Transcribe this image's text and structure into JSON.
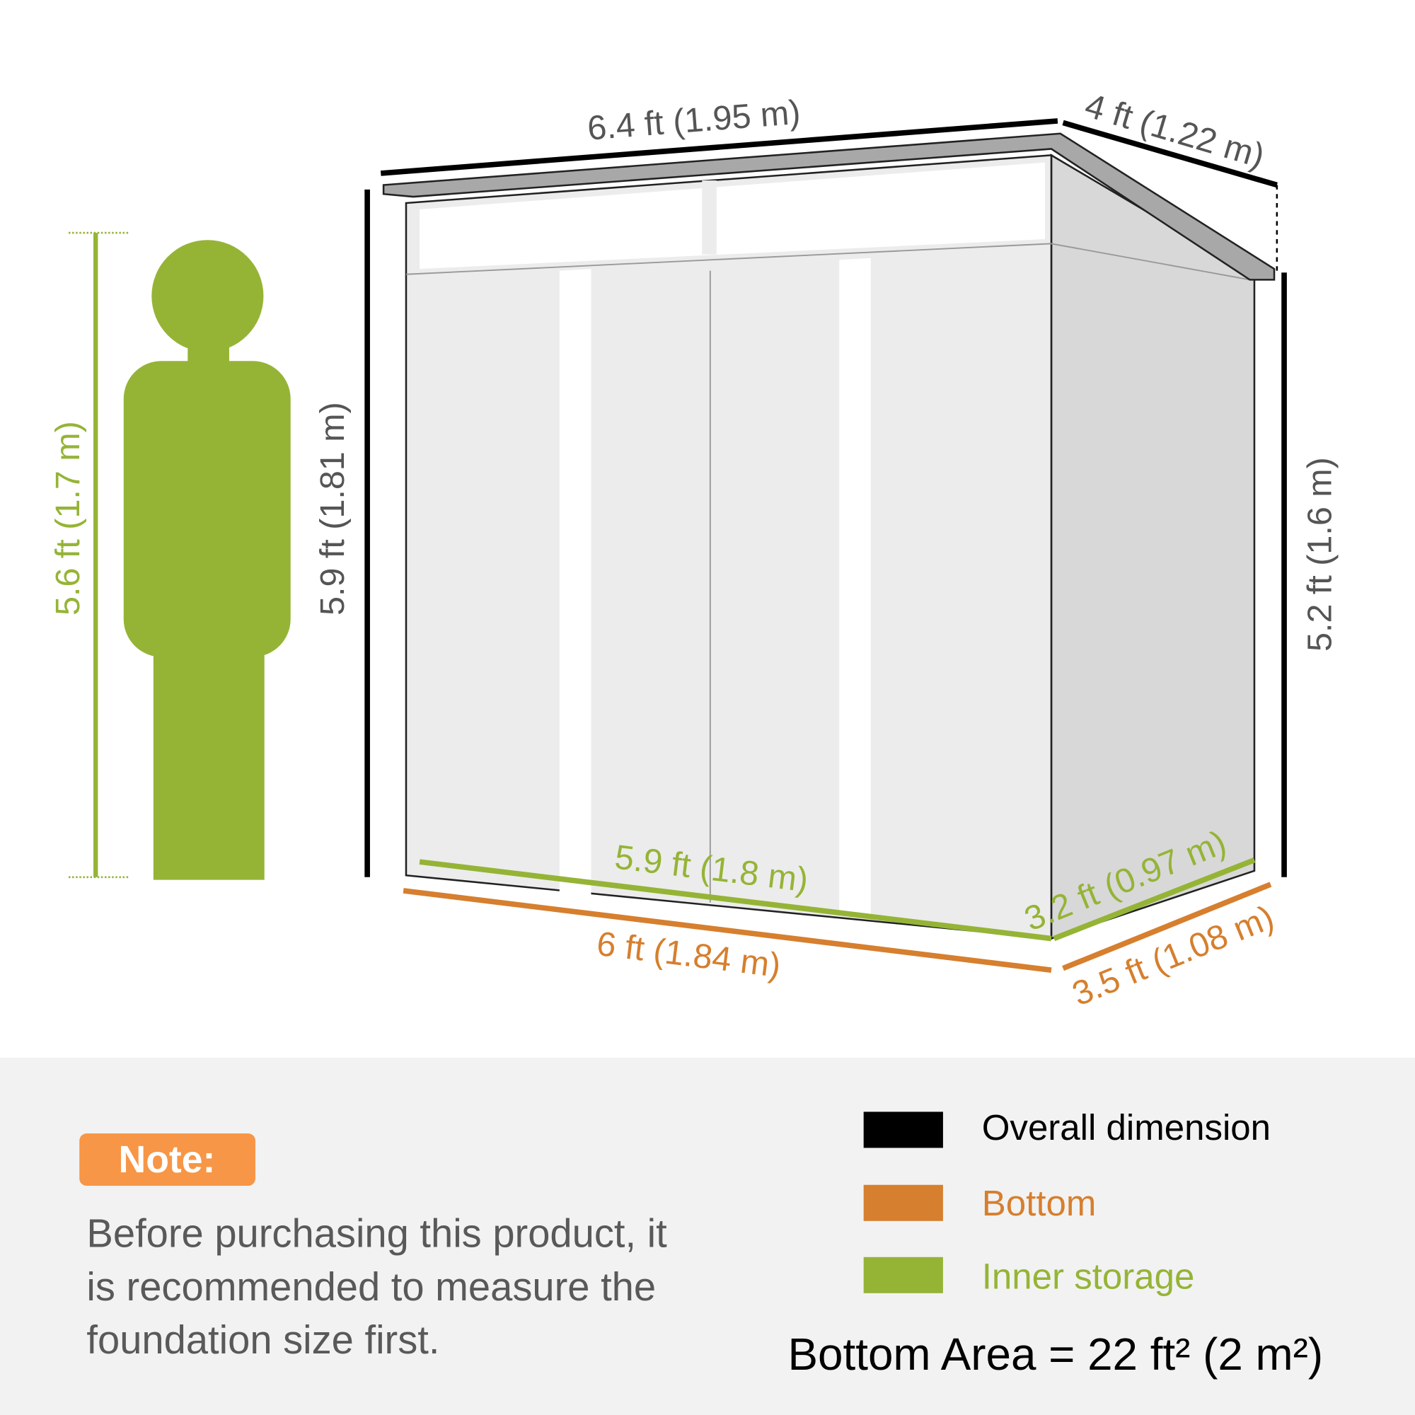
{
  "colors": {
    "overall": "#000000",
    "bottom": "#d67f2e",
    "inner": "#95b436",
    "note_badge": "#f79646",
    "panel": "#f2f2f2",
    "dim_text": "#555555"
  },
  "dimensions": {
    "overall_width": "6.4 ft (1.95 m)",
    "overall_depth": "4 ft (1.22 m)",
    "front_height": "5.9 ft (1.81 m)",
    "back_height": "5.2 ft (1.6 m)",
    "bottom_width": "6 ft (1.84 m)",
    "bottom_depth": "3.5 ft (1.08 m)",
    "inner_width": "5.9 ft (1.8 m)",
    "inner_depth": "3.2 ft (0.97 m)",
    "person_height": "5.6 ft (1.7 m)"
  },
  "note": {
    "label": "Note:",
    "lines": [
      "Before purchasing this product, it",
      "is recommended to measure the",
      "foundation size first."
    ]
  },
  "legend": [
    {
      "label": "Overall dimension",
      "color": "#000000"
    },
    {
      "label": "Bottom",
      "color": "#d67f2e"
    },
    {
      "label": "Inner storage",
      "color": "#95b436"
    }
  ],
  "bottom_area": "Bottom Area = 22 ft² (2 m²)"
}
